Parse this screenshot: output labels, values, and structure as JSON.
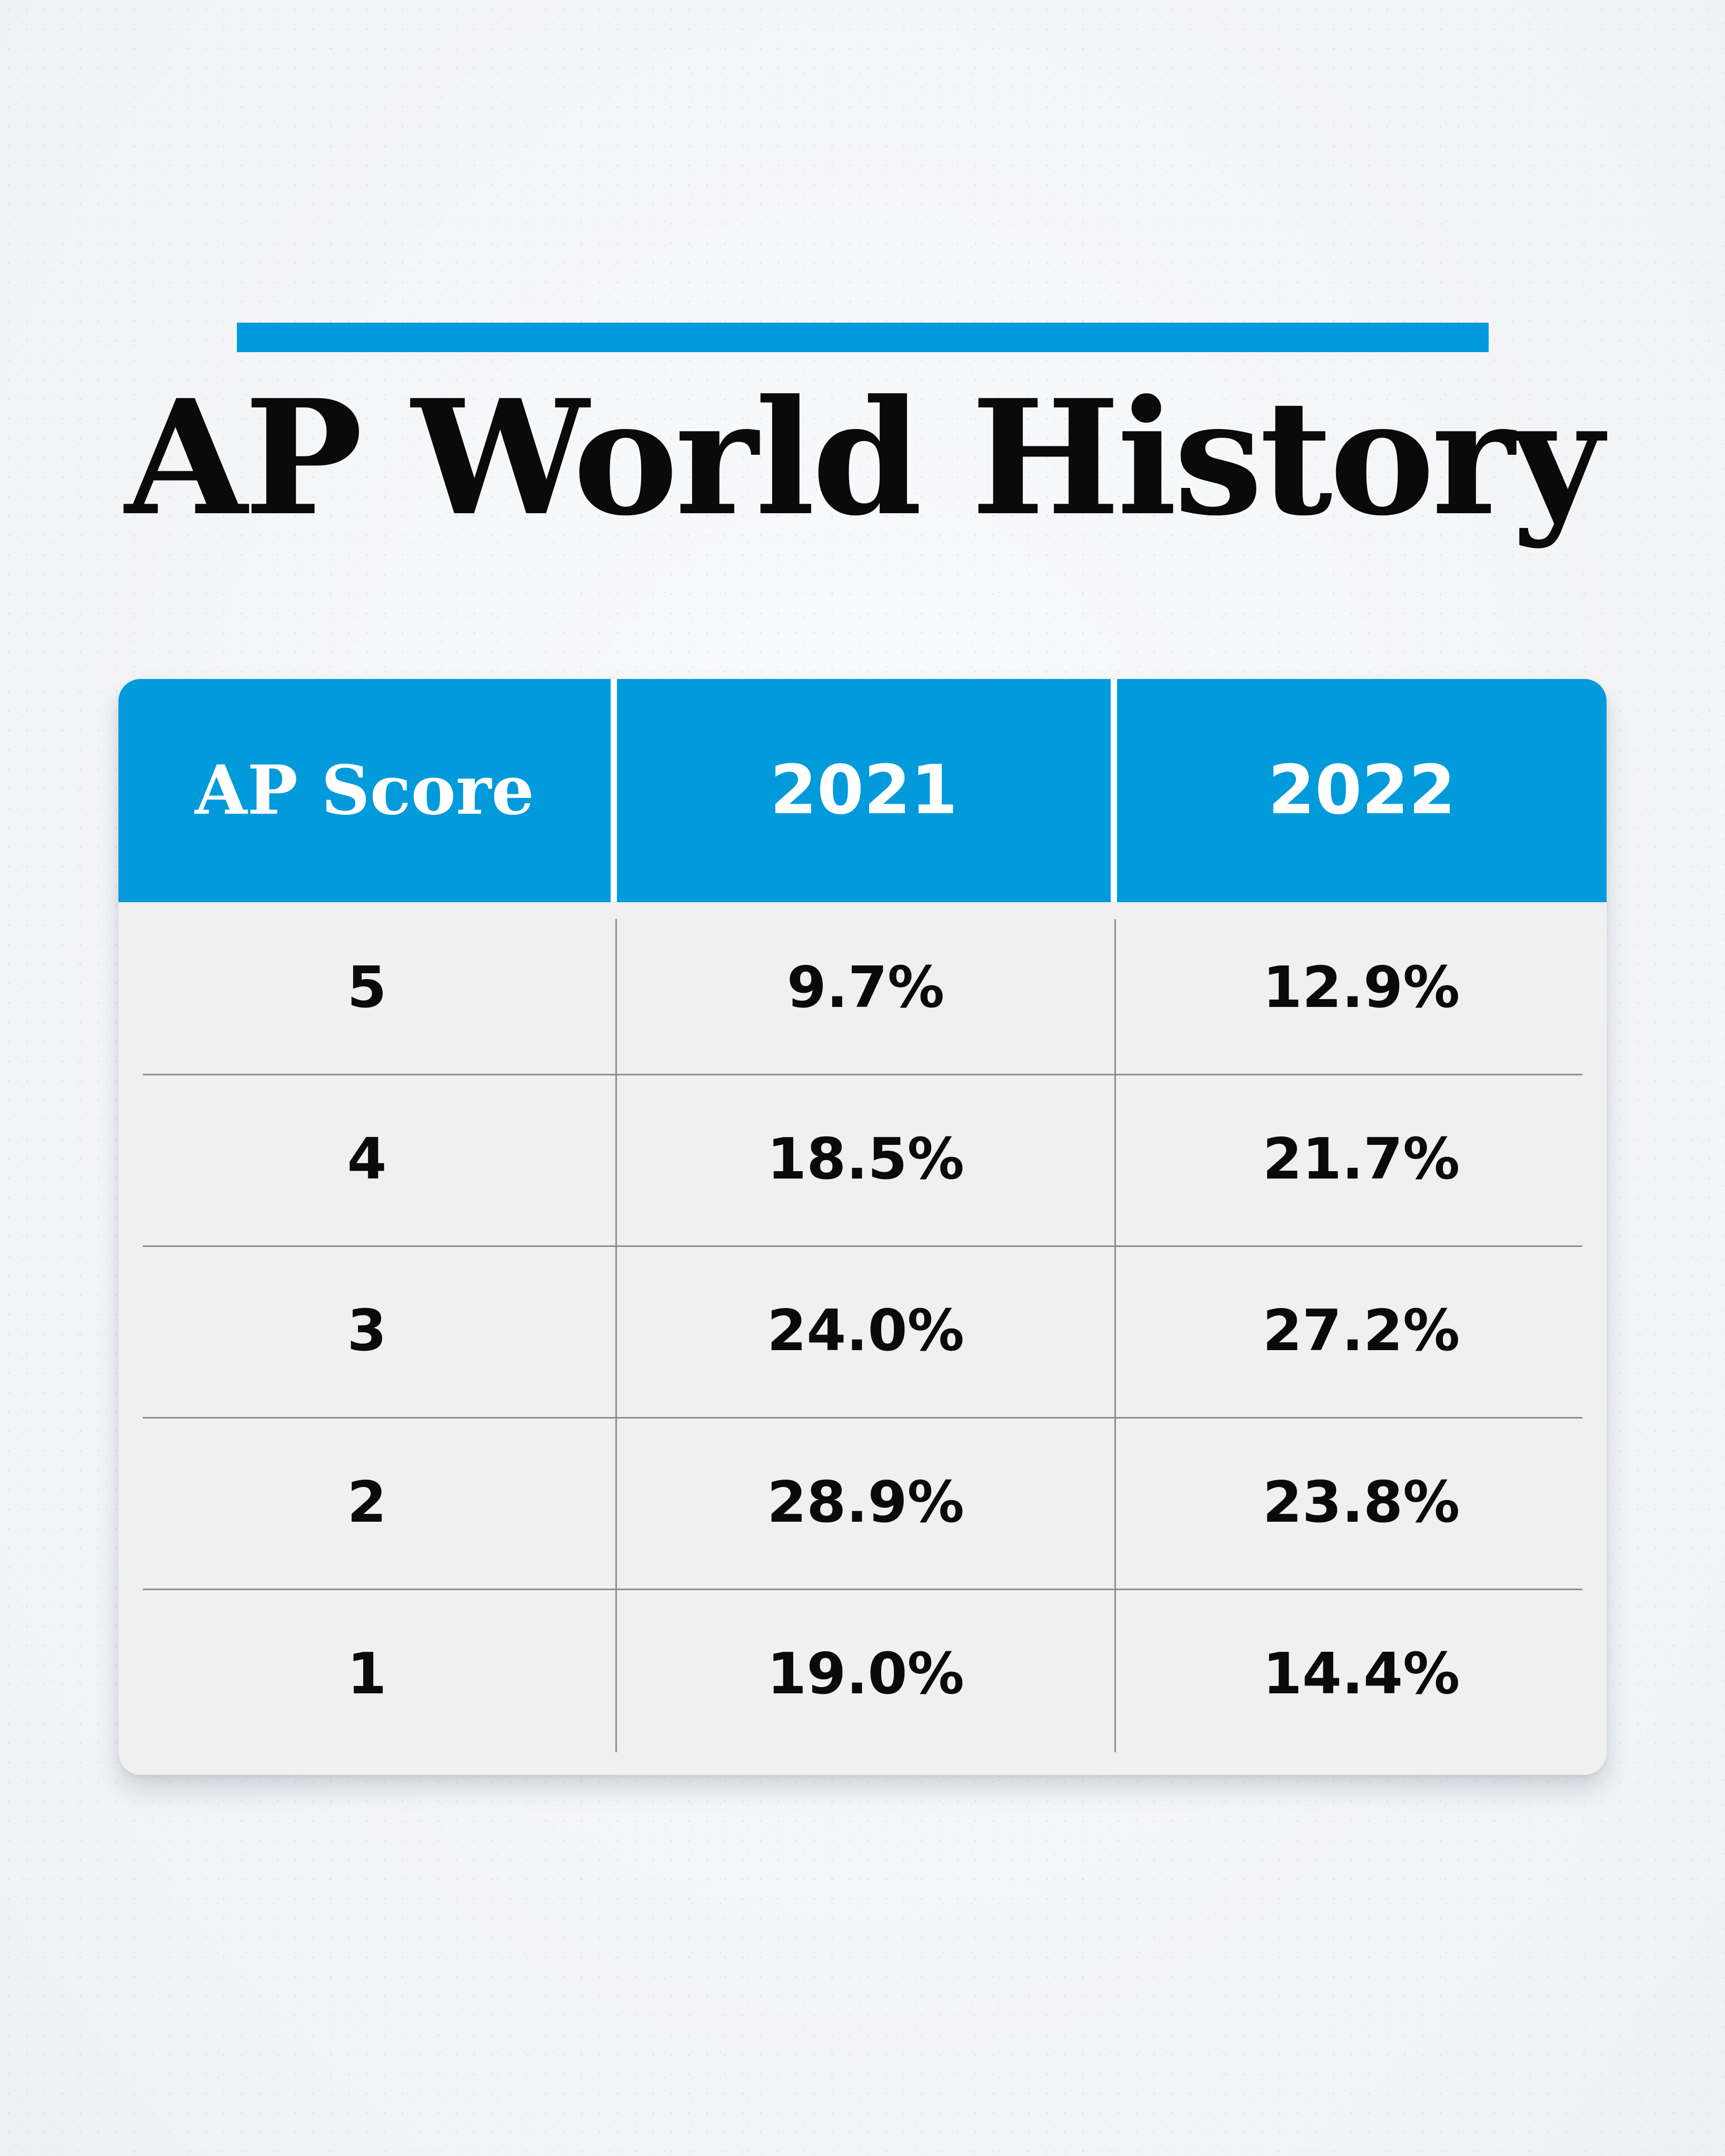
{
  "colors": {
    "accent": "#019ADB",
    "title_text": "#0A0A0A",
    "table_body": "#F0F0F0",
    "gridline": "#8E8E8E",
    "header_text": "#FFFFFF"
  },
  "chart_data": {
    "type": "table",
    "title": "AP World History",
    "columns": [
      "AP Score",
      "2021",
      "2022"
    ],
    "rows": [
      [
        "5",
        "9.7%",
        "12.9%"
      ],
      [
        "4",
        "18.5%",
        "21.7%"
      ],
      [
        "3",
        "24.0%",
        "27.2%"
      ],
      [
        "2",
        "28.9%",
        "23.8%"
      ],
      [
        "1",
        "19.0%",
        "14.4%"
      ]
    ]
  }
}
